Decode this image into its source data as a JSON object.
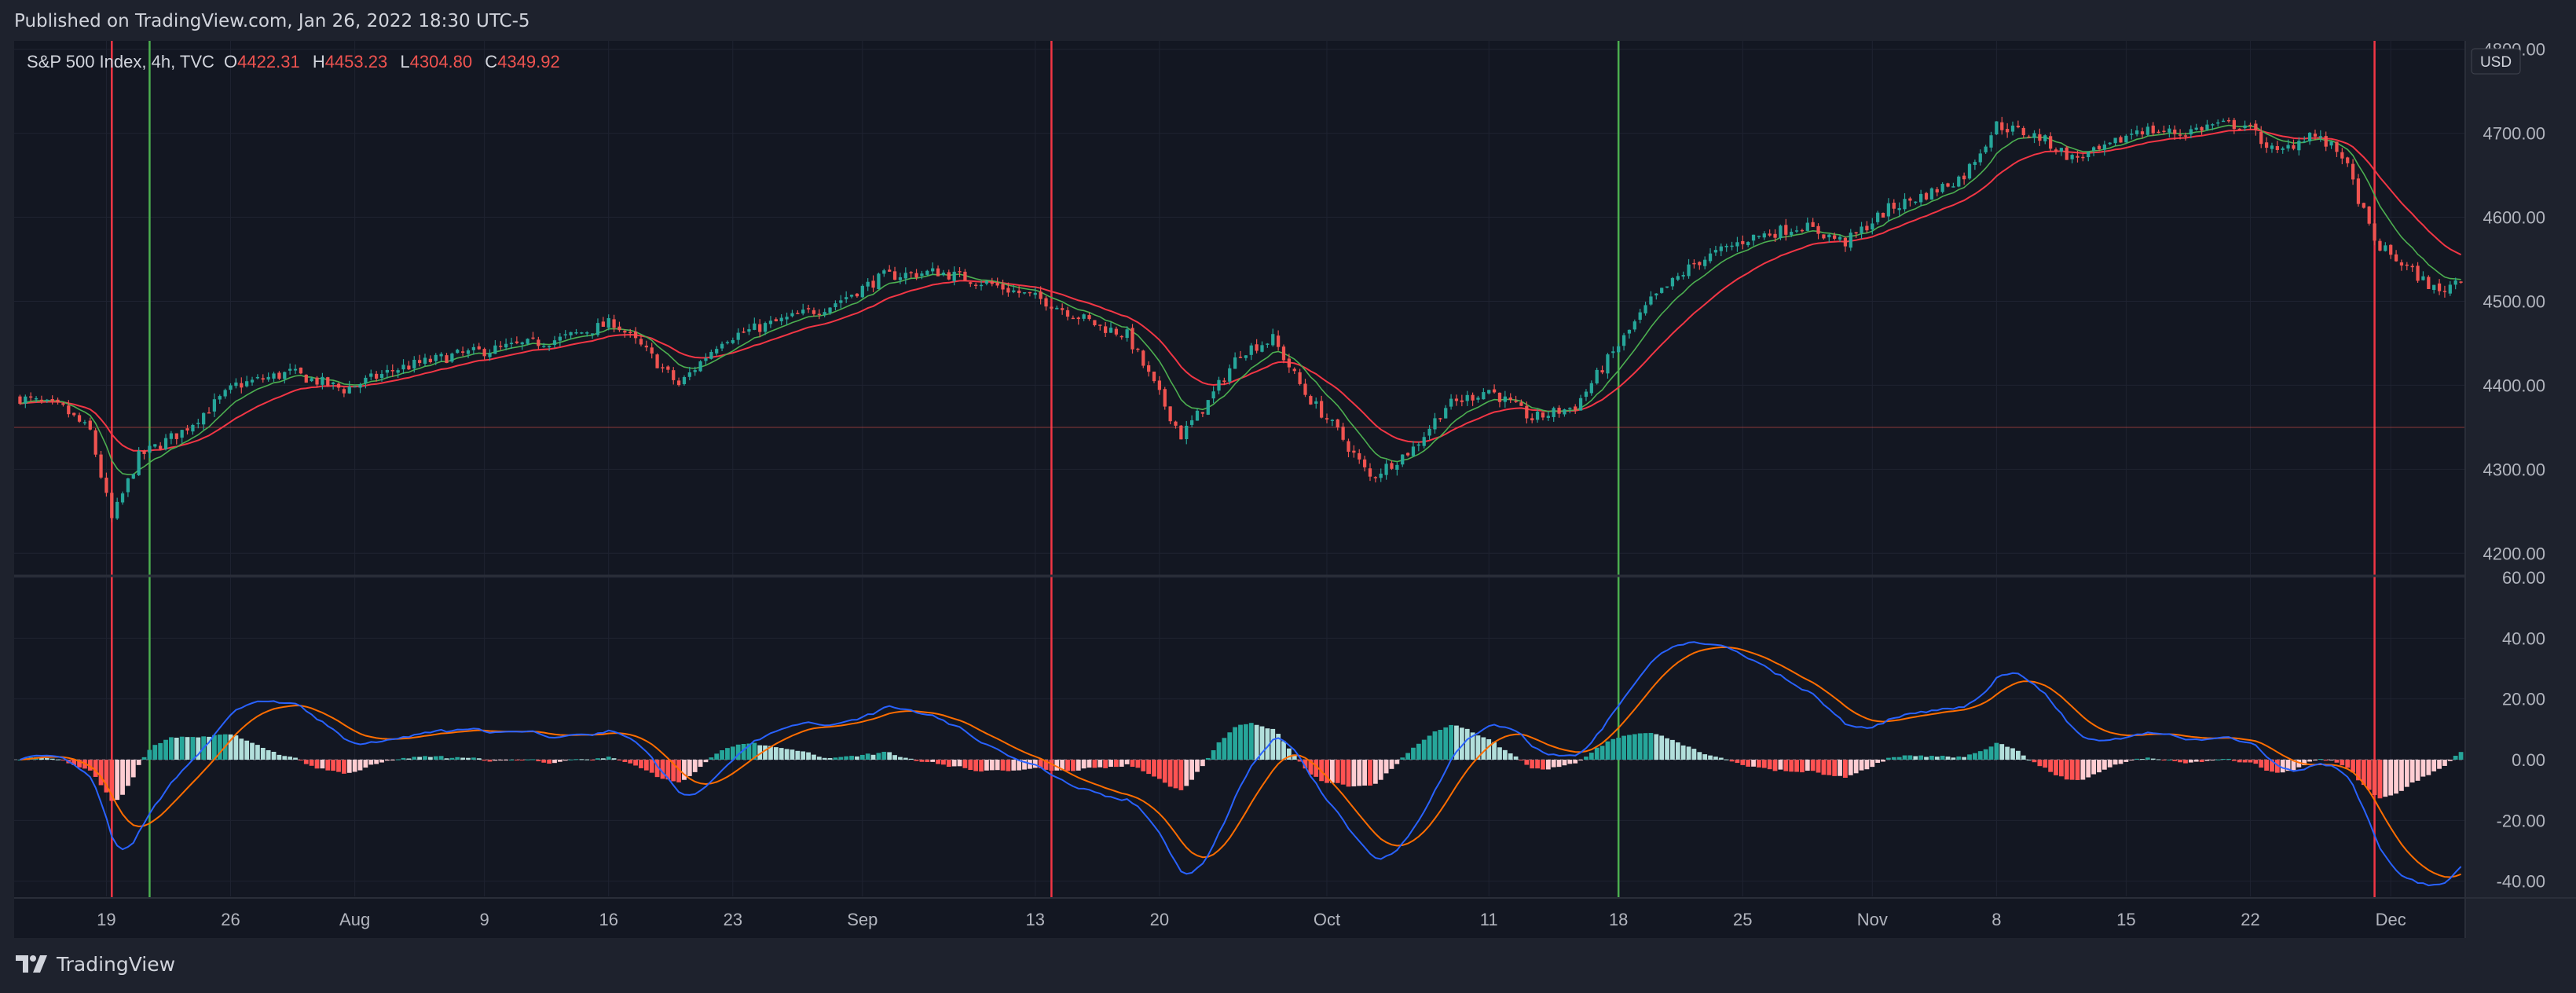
{
  "header": {
    "published": "Published on TradingView.com, Jan 26, 2022 18:30 UTC-5"
  },
  "footer": {
    "brand": "TradingView"
  },
  "colors": {
    "background": "#131722",
    "up": "#26a69a",
    "down": "#ef5350",
    "ema_fast": "#4caf50",
    "ema_slow": "#f23645",
    "macd": "#2962ff",
    "signal": "#ff6d00",
    "hist_up_strong": "#26a69a",
    "hist_up_weak": "#b2dfdb",
    "hist_down_strong": "#ff5252",
    "hist_down_weak": "#ffcdd2"
  },
  "chart_data": [
    {
      "type": "candlestick",
      "title": "S&P 500 Index, 4h, TVC",
      "ohlc_label": {
        "o_key": "O",
        "o": "4422.31",
        "h_key": "H",
        "h": "4453.23",
        "l_key": "L",
        "l": "4304.80",
        "c_key": "C",
        "c": "4349.92"
      },
      "currency": "USD",
      "ylim": [
        4175,
        4810
      ],
      "y_ticks": [
        "4800.00",
        "4700.00",
        "4600.00",
        "4500.00",
        "4400.00",
        "4300.00",
        "4200.00"
      ],
      "y_tick_values": [
        4800,
        4700,
        4600,
        4500,
        4400,
        4300,
        4200
      ],
      "price_line": 4349.92,
      "x_labels": [
        "19",
        "26",
        "Aug",
        "9",
        "16",
        "23",
        "Sep",
        "13",
        "20",
        "Oct",
        "11",
        "18",
        "25",
        "Nov",
        "8",
        "15",
        "22",
        "Dec"
      ],
      "x_label_index": [
        16,
        39,
        62,
        86,
        109,
        132,
        156,
        188,
        211,
        242,
        272,
        296,
        319,
        343,
        366,
        390,
        413,
        439
      ],
      "anchors": [
        [
          0,
          4385
        ],
        [
          8,
          4372
        ],
        [
          13,
          4345
        ],
        [
          17,
          4240
        ],
        [
          22,
          4315
        ],
        [
          30,
          4345
        ],
        [
          40,
          4400
        ],
        [
          50,
          4415
        ],
        [
          60,
          4395
        ],
        [
          70,
          4420
        ],
        [
          80,
          4435
        ],
        [
          90,
          4445
        ],
        [
          100,
          4455
        ],
        [
          110,
          4475
        ],
        [
          116,
          4440
        ],
        [
          122,
          4400
        ],
        [
          130,
          4455
        ],
        [
          140,
          4475
        ],
        [
          150,
          4495
        ],
        [
          160,
          4530
        ],
        [
          170,
          4535
        ],
        [
          180,
          4520
        ],
        [
          190,
          4500
        ],
        [
          200,
          4470
        ],
        [
          205,
          4460
        ],
        [
          210,
          4400
        ],
        [
          215,
          4340
        ],
        [
          220,
          4380
        ],
        [
          226,
          4440
        ],
        [
          232,
          4455
        ],
        [
          238,
          4390
        ],
        [
          244,
          4345
        ],
        [
          250,
          4290
        ],
        [
          258,
          4325
        ],
        [
          264,
          4375
        ],
        [
          272,
          4395
        ],
        [
          280,
          4360
        ],
        [
          288,
          4375
        ],
        [
          294,
          4430
        ],
        [
          302,
          4500
        ],
        [
          310,
          4545
        ],
        [
          320,
          4575
        ],
        [
          330,
          4590
        ],
        [
          338,
          4570
        ],
        [
          346,
          4610
        ],
        [
          354,
          4630
        ],
        [
          360,
          4650
        ],
        [
          366,
          4710
        ],
        [
          374,
          4695
        ],
        [
          380,
          4670
        ],
        [
          386,
          4680
        ],
        [
          392,
          4705
        ],
        [
          400,
          4700
        ],
        [
          406,
          4710
        ],
        [
          412,
          4710
        ],
        [
          418,
          4675
        ],
        [
          424,
          4700
        ],
        [
          430,
          4675
        ],
        [
          436,
          4570
        ],
        [
          442,
          4540
        ],
        [
          448,
          4510
        ],
        [
          452,
          4530
        ]
      ],
      "candle_count": 453,
      "seed": 7,
      "ema_fast_length": 9,
      "ema_slow_length": 21,
      "signal_lines": [
        {
          "index": 17,
          "color": "red"
        },
        {
          "index": 24,
          "color": "green"
        },
        {
          "index": 191,
          "color": "red"
        },
        {
          "index": 296,
          "color": "green"
        },
        {
          "index": 436,
          "color": "red"
        }
      ]
    },
    {
      "type": "macd",
      "ylim": [
        -45,
        60
      ],
      "y_ticks": [
        "60.00",
        "40.00",
        "20.00",
        "0.00",
        "-20.00",
        "-40.00"
      ],
      "y_tick_values": [
        60,
        40,
        20,
        0,
        -20,
        -40
      ],
      "series": [
        {
          "name": "MACD",
          "color": "#2962ff"
        },
        {
          "name": "Signal",
          "color": "#ff6d00"
        },
        {
          "name": "Histogram"
        }
      ]
    }
  ]
}
